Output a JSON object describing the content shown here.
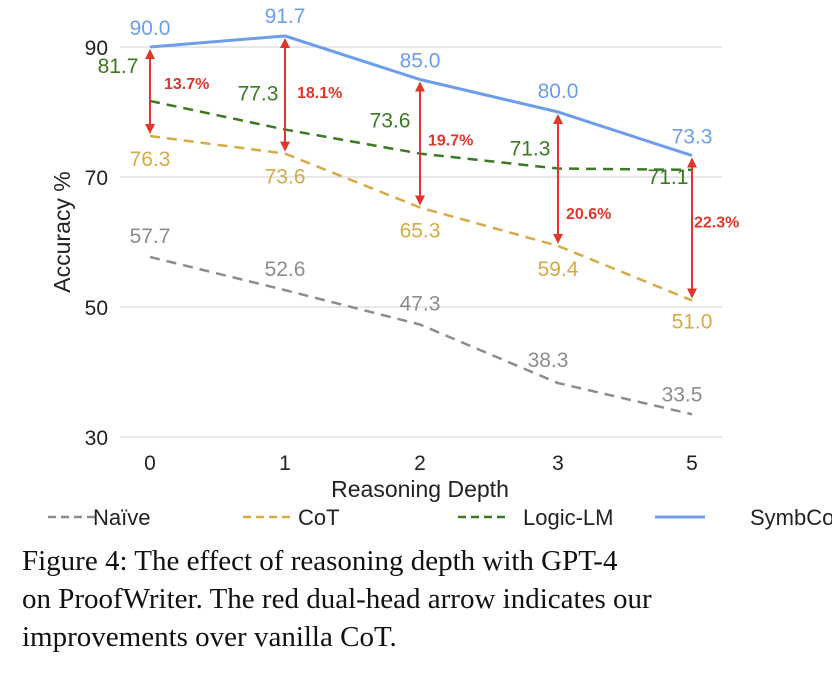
{
  "chart_data": {
    "type": "line",
    "categories": [
      "0",
      "1",
      "2",
      "3",
      "5"
    ],
    "xlabel": "Reasoning Depth",
    "ylabel": "Accuracy %",
    "ylim": [
      30,
      95
    ],
    "yticks": [
      "30",
      "50",
      "70",
      "90"
    ],
    "grid": true,
    "legend_placement": "bottom",
    "series": [
      {
        "name": "Naïve",
        "color": "#8c8c8c",
        "dash": true,
        "values": [
          57.7,
          52.6,
          47.3,
          38.3,
          33.5
        ],
        "labels": [
          "57.7",
          "52.6",
          "47.3",
          "38.3",
          "33.5"
        ]
      },
      {
        "name": "CoT",
        "color": "#d8aa45",
        "dash": true,
        "values": [
          76.3,
          73.6,
          65.3,
          59.4,
          51.0
        ],
        "labels": [
          "76.3",
          "73.6",
          "65.3",
          "59.4",
          "51.0"
        ]
      },
      {
        "name": "Logic-LM",
        "color": "#3a7a22",
        "dash": true,
        "values": [
          81.7,
          77.3,
          73.6,
          71.3,
          71.1
        ],
        "labels": [
          "81.7",
          "77.3",
          "73.6",
          "71.3",
          "71.1"
        ]
      },
      {
        "name": "SymbCoT",
        "color": "#6d9eeb",
        "dash": false,
        "values": [
          90.0,
          91.7,
          85.0,
          80.0,
          73.3
        ],
        "labels": [
          "90.0",
          "91.7",
          "85.0",
          "80.0",
          "73.3"
        ]
      }
    ],
    "improvements": {
      "color": "#e0362c",
      "labels": [
        "13.7%",
        "18.1%",
        "19.7%",
        "20.6%",
        "22.3%"
      ]
    }
  },
  "caption": {
    "lines": [
      "Figure 4:  The effect of reasoning depth with GPT-4",
      "on ProofWriter. The red dual-head arrow indicates our",
      "improvements over vanilla CoT."
    ]
  }
}
